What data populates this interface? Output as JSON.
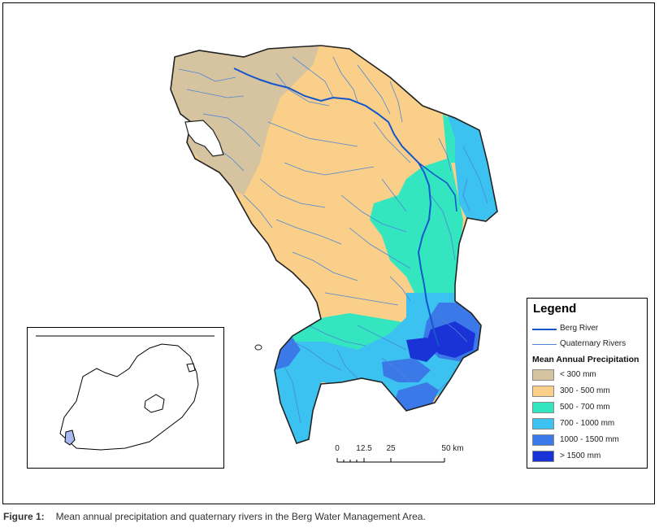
{
  "legend": {
    "title": "Legend",
    "berg_river": "Berg River",
    "quaternary_rivers": "Quaternary Rivers",
    "precip_title": "Mean Annual Precipitation",
    "classes": [
      {
        "label": "< 300 mm",
        "color": "#d6c3a0"
      },
      {
        "label": "300 - 500 mm",
        "color": "#f9cf8a"
      },
      {
        "label": "500 - 700 mm",
        "color": "#33e6c0"
      },
      {
        "label": "700 - 1000 mm",
        "color": "#3bc2f0"
      },
      {
        "label": "1000 - 1500 mm",
        "color": "#3b78e8"
      },
      {
        "label": "> 1500 mm",
        "color": "#1a33d6"
      }
    ],
    "berg_color": "#1456cc",
    "quaternary_color": "#4d86d6"
  },
  "scale": {
    "ticks": [
      "0",
      "12.5",
      "25",
      "50 km"
    ]
  },
  "caption": {
    "label": "Figure 1:",
    "text": "Mean annual precipitation and quaternary rivers in the Berg Water Management Area."
  }
}
